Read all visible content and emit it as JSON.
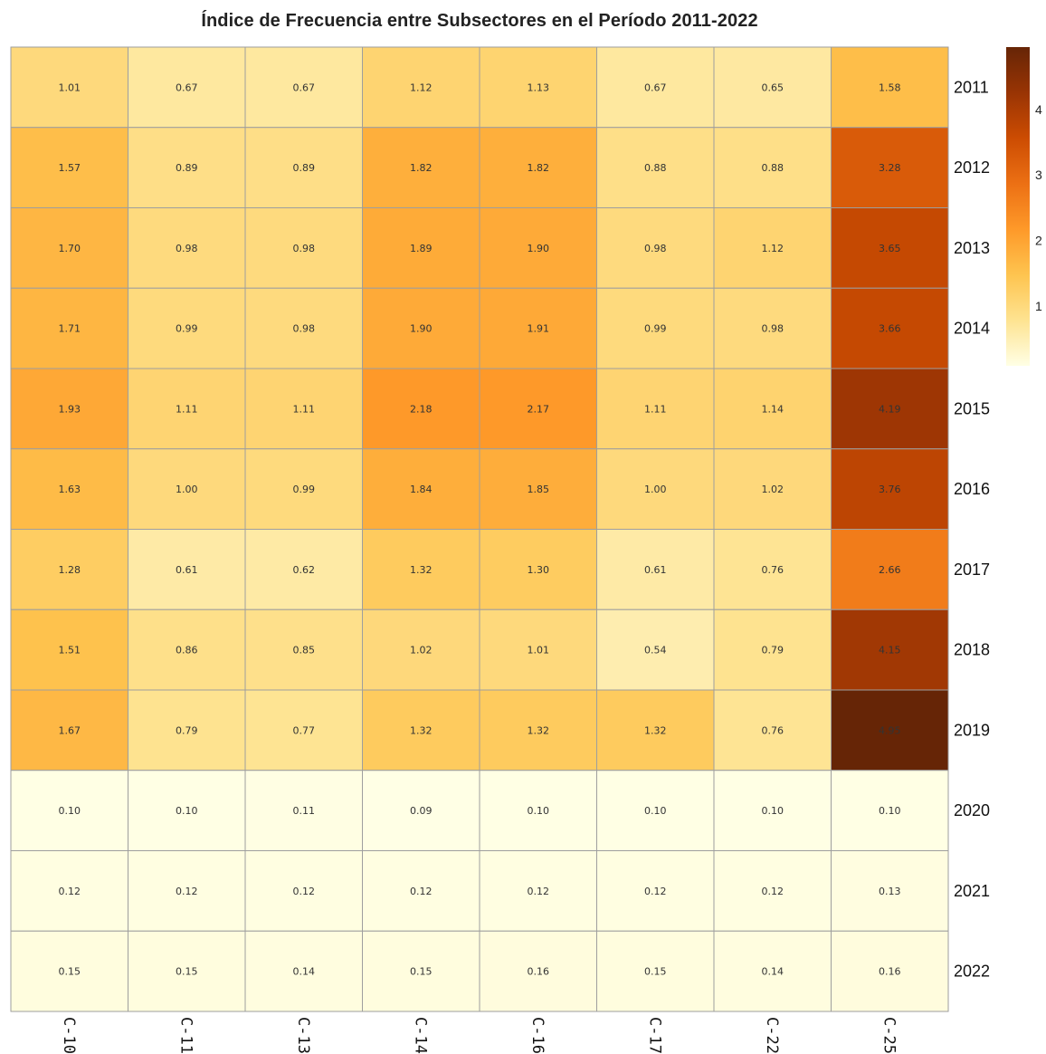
{
  "chart_data": {
    "type": "heatmap",
    "title": "Índice de Frecuencia entre Subsectores en el Período 2011-2022",
    "columns": [
      "C-10",
      "C-11",
      "C-13",
      "C-14",
      "C-16",
      "C-17",
      "C-22",
      "C-25"
    ],
    "rows": [
      "2011",
      "2012",
      "2013",
      "2014",
      "2015",
      "2016",
      "2017",
      "2018",
      "2019",
      "2020",
      "2021",
      "2022"
    ],
    "values": [
      [
        1.01,
        0.67,
        0.67,
        1.12,
        1.13,
        0.67,
        0.65,
        1.58
      ],
      [
        1.57,
        0.89,
        0.89,
        1.82,
        1.82,
        0.88,
        0.88,
        3.28
      ],
      [
        1.7,
        0.98,
        0.98,
        1.89,
        1.9,
        0.98,
        1.12,
        3.65
      ],
      [
        1.71,
        0.99,
        0.98,
        1.9,
        1.91,
        0.99,
        0.98,
        3.66
      ],
      [
        1.93,
        1.11,
        1.11,
        2.18,
        2.17,
        1.11,
        1.14,
        4.19
      ],
      [
        1.63,
        1.0,
        0.99,
        1.84,
        1.85,
        1.0,
        1.02,
        3.76
      ],
      [
        1.28,
        0.61,
        0.62,
        1.32,
        1.3,
        0.61,
        0.76,
        2.66
      ],
      [
        1.51,
        0.86,
        0.85,
        1.02,
        1.01,
        0.54,
        0.79,
        4.15
      ],
      [
        1.67,
        0.79,
        0.77,
        1.32,
        1.32,
        1.32,
        0.76,
        4.95
      ],
      [
        0.1,
        0.1,
        0.11,
        0.09,
        0.1,
        0.1,
        0.1,
        0.1
      ],
      [
        0.12,
        0.12,
        0.12,
        0.12,
        0.12,
        0.12,
        0.12,
        0.13
      ],
      [
        0.15,
        0.15,
        0.14,
        0.15,
        0.16,
        0.15,
        0.14,
        0.16
      ]
    ],
    "color_scale": {
      "min": 0.09,
      "max": 4.95,
      "ticks": [
        1,
        2,
        3,
        4
      ],
      "colors": [
        "#ffffe5",
        "#fee391",
        "#fec44f",
        "#fe9929",
        "#ec7014",
        "#cc4c02",
        "#993404",
        "#662506"
      ]
    },
    "legend_position": "right",
    "grid_color": "#9e9e9e"
  }
}
